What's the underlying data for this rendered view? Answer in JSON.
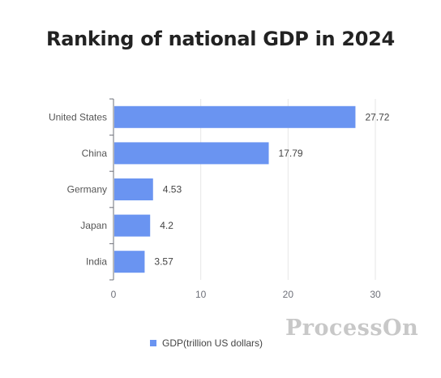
{
  "page": {
    "title": "Ranking of national GDP in 2024"
  },
  "chart_data": {
    "type": "bar",
    "orientation": "horizontal",
    "categories": [
      "United States",
      "China",
      "Germany",
      "Japan",
      "India"
    ],
    "series": [
      {
        "name": "GDP(trillion US dollars)",
        "values": [
          27.72,
          17.79,
          4.53,
          4.2,
          3.57
        ],
        "color": "#6a94f1"
      }
    ],
    "data_labels": [
      "27.72",
      "17.79",
      "4.53",
      "4.2",
      "3.57"
    ],
    "x_ticks": [
      "0",
      "10",
      "20",
      "30"
    ],
    "xlim": [
      0,
      30
    ],
    "grid": true,
    "legend_position": "bottom"
  },
  "watermark": {
    "text": "ProcessOn"
  }
}
